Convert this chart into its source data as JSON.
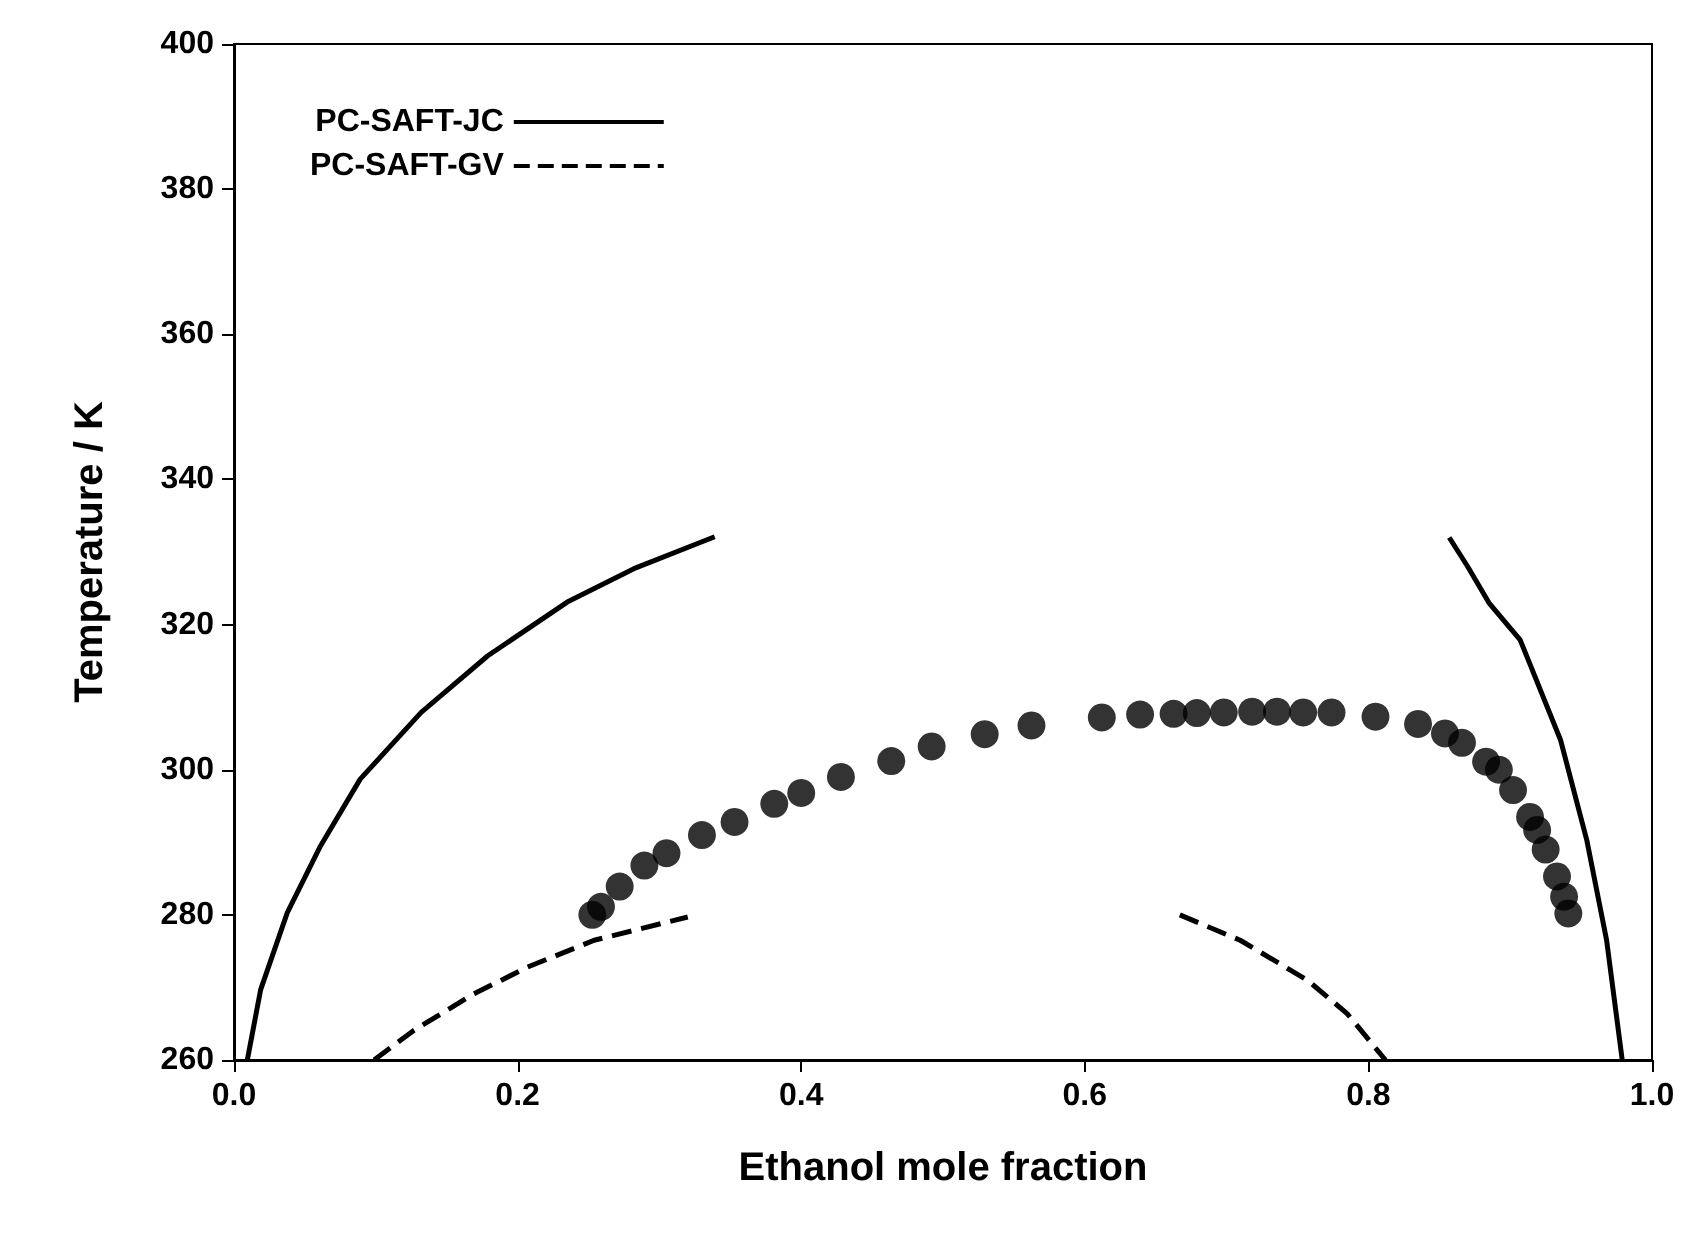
{
  "chart_data": {
    "type": "line",
    "xlabel": "Ethanol mole fraction",
    "ylabel": "Temperature / K",
    "xlim": [
      0,
      1
    ],
    "xticks": [
      {
        "value": 0,
        "label": "0.0"
      },
      {
        "value": 0.2,
        "label": "0.2"
      },
      {
        "value": 0.4,
        "label": "0.4"
      },
      {
        "value": 0.6,
        "label": "0.6"
      },
      {
        "value": 0.8,
        "label": "0.8"
      },
      {
        "value": 1,
        "label": "1.0"
      }
    ],
    "ylim": [
      260,
      400
    ],
    "yticks": [
      260,
      280,
      300,
      320,
      340,
      360,
      380,
      400
    ],
    "grid": false,
    "legend": "top left",
    "series": [
      {
        "name": "PC-SAFT-JC",
        "line_style": "solid",
        "marker": "none",
        "color": "#000000",
        "x": [
          0.0094,
          0.0188,
          0.0376,
          0.061,
          0.089,
          0.132,
          0.179,
          0.235,
          0.282,
          0.339
        ],
        "values": [
          260,
          269.7,
          280.3,
          289.5,
          298.7,
          307.9,
          315.7,
          323.1,
          327.7,
          332.1
        ]
      },
      {
        "line_style": "solid",
        "marker": "none",
        "color": "#000000",
        "x": [
          0.857,
          0.87,
          0.885,
          0.907,
          0.9355,
          0.954,
          0.968,
          0.979
        ],
        "values": [
          332,
          328,
          323,
          317.9,
          304.1,
          290.3,
          276.5,
          260
        ]
      },
      {
        "name": "PC-SAFT-GV",
        "line_style": "dashed",
        "marker": "none",
        "color": "#000000",
        "x": [
          0.0988,
          0.127,
          0.169,
          0.207,
          0.254,
          0.32
        ],
        "values": [
          260,
          264.1,
          269.1,
          272.8,
          276.5,
          279.7
        ]
      },
      {
        "line_style": "dashed",
        "marker": "none",
        "color": "#000000",
        "x": [
          0.667,
          0.7096,
          0.757,
          0.785,
          0.812
        ],
        "values": [
          280,
          276.5,
          271,
          266.4,
          260
        ]
      },
      {
        "type": "scatter",
        "marker": "circle",
        "color": "#000000",
        "x": [
          0.2527,
          0.2588,
          0.272,
          0.2894,
          0.305,
          0.33,
          0.353,
          0.381,
          0.4,
          0.428,
          0.4635,
          0.492,
          0.5294,
          0.5624,
          0.612,
          0.639,
          0.6626,
          0.679,
          0.698,
          0.718,
          0.7355,
          0.754,
          0.774,
          0.805,
          0.835,
          0.854,
          0.866,
          0.883,
          0.892,
          0.902,
          0.914,
          0.919,
          0.925,
          0.933,
          0.938,
          0.941
        ],
        "values": [
          280,
          281.1,
          283.9,
          286.8,
          288.5,
          291,
          292.8,
          295.3,
          296.8,
          299,
          301.2,
          303.2,
          304.9,
          306.1,
          307.2,
          307.6,
          307.7,
          307.8,
          307.9,
          308,
          308,
          307.9,
          307.9,
          307.3,
          306.3,
          305,
          303.7,
          301.1,
          300,
          297.2,
          293.5,
          291.7,
          289,
          285.3,
          282.5,
          280.2
        ]
      }
    ]
  }
}
